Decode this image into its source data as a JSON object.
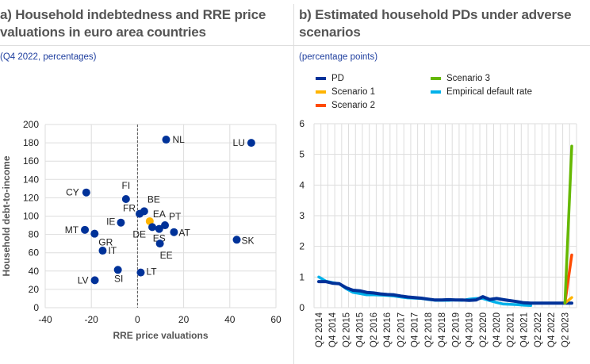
{
  "panel_a": {
    "title_line1": "a) Household indebtedness and RRE price",
    "title_line2": "valuations in euro area countries",
    "subtitle": "(Q4 2022, percentages)"
  },
  "panel_b": {
    "title_line1": "b) Estimated household PDs under adverse",
    "title_line2": "scenarios",
    "subtitle": "(percentage points)"
  },
  "colors": {
    "pd": "#003299",
    "scenario1": "#ffb400",
    "scenario2": "#ff4b00",
    "scenario3": "#65b800",
    "empirical": "#00b1ea",
    "highlight": "#ffb400",
    "dot": "#003299"
  },
  "chart_data": [
    {
      "type": "scatter",
      "xlabel": "RRE price valuations",
      "ylabel": "Household debt-to-income",
      "xlim": [
        -40,
        60
      ],
      "ylim": [
        0,
        200
      ],
      "xticks": [
        -40,
        -20,
        0,
        20,
        40,
        60
      ],
      "yticks": [
        0,
        20,
        40,
        60,
        80,
        100,
        120,
        140,
        160,
        180,
        200
      ],
      "grid": true,
      "points": [
        {
          "label": "NL",
          "x": 12.4,
          "y": 183.5
        },
        {
          "label": "LU",
          "x": 49.3,
          "y": 180
        },
        {
          "label": "CY",
          "x": -22.2,
          "y": 125.8
        },
        {
          "label": "FI",
          "x": -5,
          "y": 118.6
        },
        {
          "label": "BE",
          "x": 2.9,
          "y": 105.3
        },
        {
          "label": "FR",
          "x": 0.9,
          "y": 102.5
        },
        {
          "label": "EA",
          "x": 5.3,
          "y": 94.4,
          "highlight": true
        },
        {
          "label": "IE",
          "x": -7.2,
          "y": 92.9
        },
        {
          "label": "PT",
          "x": 11.9,
          "y": 90
        },
        {
          "label": "DE",
          "x": 6.4,
          "y": 88
        },
        {
          "label": "ES",
          "x": 9.4,
          "y": 86
        },
        {
          "label": "AT",
          "x": 15.8,
          "y": 82.5
        },
        {
          "label": "MT",
          "x": -22.8,
          "y": 85
        },
        {
          "label": "GR",
          "x": -18.6,
          "y": 80.8
        },
        {
          "label": "SK",
          "x": 43,
          "y": 74.2
        },
        {
          "label": "EE",
          "x": 9.7,
          "y": 70
        },
        {
          "label": "IT",
          "x": -15.1,
          "y": 62.3
        },
        {
          "label": "SI",
          "x": -8.5,
          "y": 41.3
        },
        {
          "label": "LT",
          "x": 1.4,
          "y": 38.4
        },
        {
          "label": "LV",
          "x": -18.5,
          "y": 30
        }
      ]
    },
    {
      "type": "line",
      "ylim": [
        0,
        6
      ],
      "yticks": [
        0,
        1,
        2,
        3,
        4,
        5,
        6
      ],
      "grid": true,
      "legend": "top",
      "categories": [
        "Q2 2014",
        "Q3 2014",
        "Q4 2014",
        "Q1 2015",
        "Q2 2015",
        "Q3 2015",
        "Q4 2015",
        "Q1 2016",
        "Q2 2016",
        "Q3 2016",
        "Q4 2016",
        "Q1 2017",
        "Q2 2017",
        "Q3 2017",
        "Q4 2017",
        "Q1 2018",
        "Q2 2018",
        "Q3 2018",
        "Q4 2018",
        "Q1 2019",
        "Q2 2019",
        "Q3 2019",
        "Q4 2019",
        "Q1 2020",
        "Q2 2020",
        "Q3 2020",
        "Q4 2020",
        "Q1 2021",
        "Q2 2021",
        "Q3 2021",
        "Q4 2021",
        "Q1 2022",
        "Q2 2022",
        "Q3 2022",
        "Q4 2022",
        "Q1 2023",
        "Q2 2023",
        "Q3 2023"
      ],
      "tick_labels": [
        "Q2 2014",
        "Q4 2014",
        "Q2 2015",
        "Q4 2015",
        "Q2 2016",
        "Q4 2016",
        "Q2 2017",
        "Q4 2017",
        "Q2 2018",
        "Q4 2018",
        "Q2 2019",
        "Q4 2019",
        "Q2 2020",
        "Q4 2020",
        "Q2 2021",
        "Q4 2021",
        "Q2 2022",
        "Q4 2022",
        "Q2 2023"
      ],
      "series": [
        {
          "name": "PD",
          "key": "pd",
          "values": [
            0.85,
            0.85,
            0.8,
            0.78,
            0.65,
            0.57,
            0.55,
            0.5,
            0.48,
            0.45,
            0.43,
            0.42,
            0.38,
            0.35,
            0.33,
            0.31,
            0.28,
            0.25,
            0.25,
            0.26,
            0.25,
            0.25,
            0.24,
            0.25,
            0.36,
            0.27,
            0.3,
            0.26,
            0.23,
            0.2,
            0.16,
            0.15,
            0.15,
            0.15,
            0.15,
            0.15,
            0.15,
            0.15
          ]
        },
        {
          "name": "Scenario 1",
          "key": "scenario1",
          "values": [
            null,
            null,
            null,
            null,
            null,
            null,
            null,
            null,
            null,
            null,
            null,
            null,
            null,
            null,
            null,
            null,
            null,
            null,
            null,
            null,
            null,
            null,
            null,
            null,
            null,
            null,
            null,
            null,
            null,
            null,
            null,
            null,
            null,
            null,
            null,
            null,
            0.15,
            0.33
          ]
        },
        {
          "name": "Scenario 2",
          "key": "scenario2",
          "values": [
            null,
            null,
            null,
            null,
            null,
            null,
            null,
            null,
            null,
            null,
            null,
            null,
            null,
            null,
            null,
            null,
            null,
            null,
            null,
            null,
            null,
            null,
            null,
            null,
            null,
            null,
            null,
            null,
            null,
            null,
            null,
            null,
            null,
            null,
            null,
            null,
            0.15,
            1.72
          ]
        },
        {
          "name": "Scenario 3",
          "key": "scenario3",
          "values": [
            null,
            null,
            null,
            null,
            null,
            null,
            null,
            null,
            null,
            null,
            null,
            null,
            null,
            null,
            null,
            null,
            null,
            null,
            null,
            null,
            null,
            null,
            null,
            null,
            null,
            null,
            null,
            null,
            null,
            null,
            null,
            null,
            null,
            null,
            null,
            null,
            0.15,
            5.27
          ]
        },
        {
          "name": "Empirical default rate",
          "key": "empirical",
          "values": [
            1.0,
            0.87,
            0.82,
            0.78,
            0.62,
            0.5,
            0.46,
            0.42,
            0.42,
            0.41,
            0.4,
            0.38,
            0.35,
            0.32,
            0.31,
            0.3,
            0.27,
            0.24,
            0.24,
            0.24,
            0.25,
            0.24,
            0.28,
            0.3,
            0.3,
            0.23,
            0.17,
            0.12,
            0.11,
            0.1,
            0.08,
            0.07,
            null,
            null,
            null,
            null,
            null,
            null
          ]
        }
      ]
    }
  ]
}
